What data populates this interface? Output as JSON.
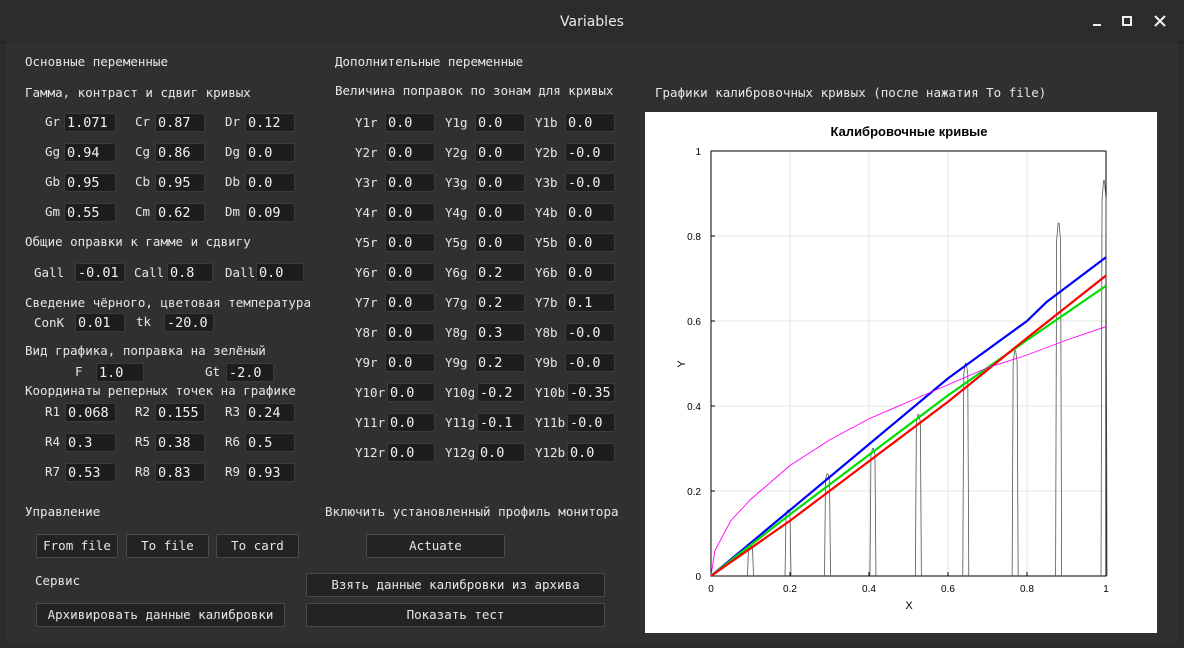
{
  "window": {
    "title": "Variables"
  },
  "sections": {
    "main": "Основные переменные",
    "gamma": "Гамма, контраст и сдвиг кривых",
    "common": "Общие оправки к гамме и сдвигу",
    "black": "Сведение чёрного, цветовая температура",
    "view": "Вид графика, поправка на зелёный",
    "coords": "Координаты реперных точек на графике",
    "control": "Управление",
    "service": "Сервис",
    "extra": "Дополнительные переменные",
    "zones": "Величина поправок по зонам для кривых",
    "profile": "Включить установленный профиль монитора",
    "graphs": "Графики калибровочных кривых (после нажатия To file)"
  },
  "gamma_fields": [
    [
      {
        "label": "Gr",
        "value": "1.071"
      },
      {
        "label": "Cr",
        "value": "0.87"
      },
      {
        "label": "Dr",
        "value": "0.12"
      }
    ],
    [
      {
        "label": "Gg",
        "value": "0.94"
      },
      {
        "label": "Cg",
        "value": "0.86"
      },
      {
        "label": "Dg",
        "value": "0.0"
      }
    ],
    [
      {
        "label": "Gb",
        "value": "0.95"
      },
      {
        "label": "Cb",
        "value": "0.95"
      },
      {
        "label": "Db",
        "value": "0.0"
      }
    ],
    [
      {
        "label": "Gm",
        "value": "0.55"
      },
      {
        "label": "Cm",
        "value": "0.62"
      },
      {
        "label": "Dm",
        "value": "0.09"
      }
    ]
  ],
  "common_fields": [
    {
      "label": "Gall",
      "value": "-0.01"
    },
    {
      "label": "Call",
      "value": "0.8"
    },
    {
      "label": "Dall",
      "value": "0.0"
    }
  ],
  "black_fields": [
    {
      "label": "ConK",
      "value": "0.01"
    },
    {
      "label": "tk",
      "value": "-20.0"
    }
  ],
  "view_fields": [
    {
      "label": "F",
      "value": "1.0"
    },
    {
      "label": "Gt",
      "value": "-2.0"
    }
  ],
  "ref_points": [
    [
      {
        "label": "R1",
        "value": "0.068"
      },
      {
        "label": "R2",
        "value": "0.155"
      },
      {
        "label": "R3",
        "value": "0.24"
      }
    ],
    [
      {
        "label": "R4",
        "value": "0.3"
      },
      {
        "label": "R5",
        "value": "0.38"
      },
      {
        "label": "R6",
        "value": "0.5"
      }
    ],
    [
      {
        "label": "R7",
        "value": "0.53"
      },
      {
        "label": "R8",
        "value": "0.83"
      },
      {
        "label": "R9",
        "value": "0.93"
      }
    ]
  ],
  "zone_fields": [
    [
      {
        "label": "Y1r",
        "value": "0.0"
      },
      {
        "label": "Y1g",
        "value": "0.0"
      },
      {
        "label": "Y1b",
        "value": "0.0"
      }
    ],
    [
      {
        "label": "Y2r",
        "value": "0.0"
      },
      {
        "label": "Y2g",
        "value": "0.0"
      },
      {
        "label": "Y2b",
        "value": "-0.0"
      }
    ],
    [
      {
        "label": "Y3r",
        "value": "0.0"
      },
      {
        "label": "Y3g",
        "value": "0.0"
      },
      {
        "label": "Y3b",
        "value": "-0.0"
      }
    ],
    [
      {
        "label": "Y4r",
        "value": "0.0"
      },
      {
        "label": "Y4g",
        "value": "0.0"
      },
      {
        "label": "Y4b",
        "value": "0.0"
      }
    ],
    [
      {
        "label": "Y5r",
        "value": "0.0"
      },
      {
        "label": "Y5g",
        "value": "0.0"
      },
      {
        "label": "Y5b",
        "value": "0.0"
      }
    ],
    [
      {
        "label": "Y6r",
        "value": "0.0"
      },
      {
        "label": "Y6g",
        "value": "0.2"
      },
      {
        "label": "Y6b",
        "value": "0.0"
      }
    ],
    [
      {
        "label": "Y7r",
        "value": "0.0"
      },
      {
        "label": "Y7g",
        "value": "0.2"
      },
      {
        "label": "Y7b",
        "value": "0.1"
      }
    ],
    [
      {
        "label": "Y8r",
        "value": "0.0"
      },
      {
        "label": "Y8g",
        "value": "0.3"
      },
      {
        "label": "Y8b",
        "value": "-0.0"
      }
    ],
    [
      {
        "label": "Y9r",
        "value": "0.0"
      },
      {
        "label": "Y9g",
        "value": "0.2"
      },
      {
        "label": "Y9b",
        "value": "-0.0"
      }
    ],
    [
      {
        "label": "Y10r",
        "value": "0.0"
      },
      {
        "label": "Y10g",
        "value": "-0.2"
      },
      {
        "label": "Y10b",
        "value": "-0.35"
      }
    ],
    [
      {
        "label": "Y11r",
        "value": "0.0"
      },
      {
        "label": "Y11g",
        "value": "-0.1"
      },
      {
        "label": "Y11b",
        "value": "-0.0"
      }
    ],
    [
      {
        "label": "Y12r",
        "value": "0.0"
      },
      {
        "label": "Y12g",
        "value": "0.0"
      },
      {
        "label": "Y12b",
        "value": "0.0"
      }
    ]
  ],
  "buttons": {
    "from_file": "From file",
    "to_file": "To file",
    "to_card": "To card",
    "actuate": "Actuate",
    "archive": "Архивировать данные калибровки",
    "from_archive": "Взять данные калибровки из архива",
    "show_test": "Показать тест"
  },
  "chart_data": {
    "type": "line",
    "title": "Калибровочные кривые",
    "xlabel": "X",
    "ylabel": "Y",
    "xlim": [
      0,
      1
    ],
    "ylim": [
      0,
      1
    ],
    "x_ticks": [
      "0",
      "0.2",
      "0.4",
      "0.6",
      "0.8",
      "1"
    ],
    "y_ticks": [
      "0",
      "0.2",
      "0.4",
      "0.6",
      "0.8",
      "1"
    ],
    "grid": true,
    "series": [
      {
        "color": "#0000ff",
        "x": [
          0,
          0.2,
          0.4,
          0.6,
          0.8,
          0.85,
          1
        ],
        "y": [
          0,
          0.155,
          0.31,
          0.465,
          0.6,
          0.645,
          0.75
        ]
      },
      {
        "color": "#00dd00",
        "x": [
          0,
          0.2,
          0.4,
          0.6,
          0.8,
          1
        ],
        "y": [
          0,
          0.145,
          0.285,
          0.425,
          0.555,
          0.683
        ]
      },
      {
        "color": "#ff0000",
        "x": [
          0,
          0.2,
          0.4,
          0.6,
          0.8,
          1
        ],
        "y": [
          0,
          0.13,
          0.27,
          0.41,
          0.56,
          0.707
        ]
      },
      {
        "color": "#ff00ff",
        "x": [
          0,
          0.01,
          0.05,
          0.1,
          0.2,
          0.3,
          0.4,
          0.5,
          0.6,
          0.7,
          0.8,
          0.9,
          1
        ],
        "y": [
          0,
          0.06,
          0.13,
          0.18,
          0.26,
          0.32,
          0.37,
          0.41,
          0.45,
          0.49,
          0.52,
          0.555,
          0.587
        ]
      }
    ],
    "peaks": [
      {
        "x": 0.1,
        "height": 0.07
      },
      {
        "x": 0.195,
        "height": 0.155
      },
      {
        "x": 0.295,
        "height": 0.24
      },
      {
        "x": 0.41,
        "height": 0.3
      },
      {
        "x": 0.525,
        "height": 0.38
      },
      {
        "x": 0.645,
        "height": 0.5
      },
      {
        "x": 0.77,
        "height": 0.53
      },
      {
        "x": 0.88,
        "height": 0.83
      },
      {
        "x": 0.995,
        "height": 0.93
      }
    ]
  },
  "colors": {
    "background": "#2f3131",
    "field": "#1c1e1e"
  },
  "icons": [
    "minimize-icon",
    "maximize-icon",
    "close-icon"
  ]
}
